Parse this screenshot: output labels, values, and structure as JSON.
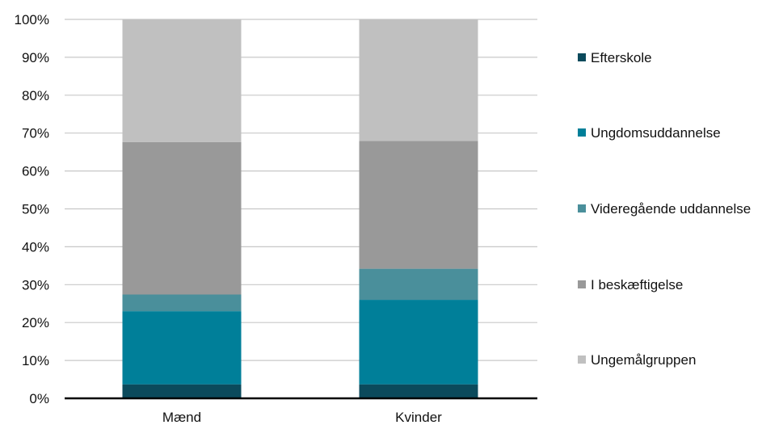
{
  "chart_data": {
    "type": "bar",
    "stacked": true,
    "categories": [
      "Mænd",
      "Kvinder"
    ],
    "series": [
      {
        "name": "Efterskole",
        "color": "#0b4a5c",
        "values": [
          3.7,
          3.7
        ]
      },
      {
        "name": "Ungdomsuddannelse",
        "color": "#007f99",
        "values": [
          19.3,
          22.3
        ]
      },
      {
        "name": "Videregående uddannelse",
        "color": "#4a8f9b",
        "values": [
          4.4,
          8.2
        ]
      },
      {
        "name": "I beskæftigelse",
        "color": "#999999",
        "values": [
          40.2,
          33.7
        ]
      },
      {
        "name": "Ungemålgruppen",
        "color": "#c0c0c0",
        "values": [
          32.4,
          32.1
        ]
      }
    ],
    "yticks": [
      "0%",
      "10%",
      "20%",
      "30%",
      "40%",
      "50%",
      "60%",
      "70%",
      "80%",
      "90%",
      "100%"
    ],
    "ylim": [
      0,
      100
    ],
    "grid": true,
    "legend_position": "right"
  }
}
